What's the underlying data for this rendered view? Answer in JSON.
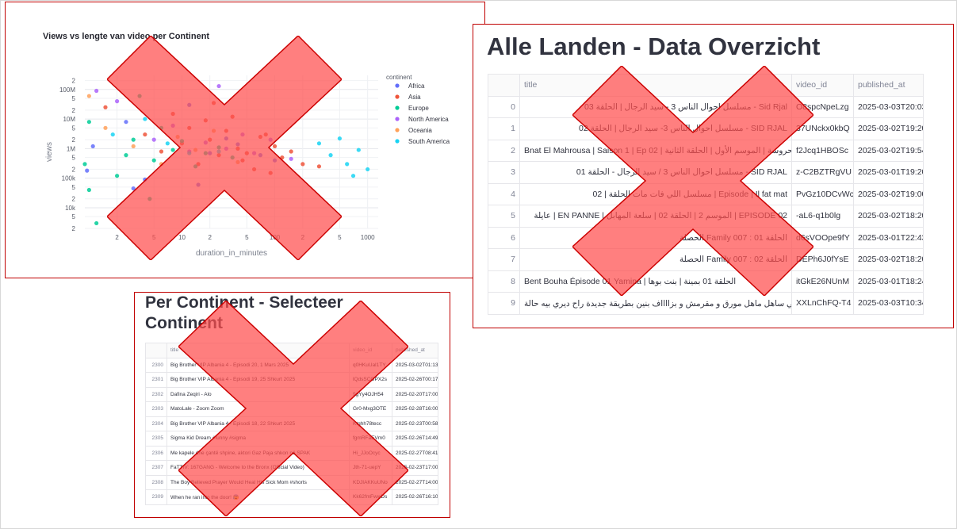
{
  "chart_data": {
    "type": "scatter",
    "title": "Views vs lengte van video per Continent",
    "xlabel": "duration_in_minutes",
    "ylabel": "views",
    "x_scale": "log",
    "y_scale": "log",
    "xlim": [
      0.9,
      1300
    ],
    "ylim": [
      2000,
      300000000
    ],
    "x_ticks": [
      {
        "v": 2,
        "l": "2"
      },
      {
        "v": 5,
        "l": "5"
      },
      {
        "v": 10,
        "l": "10"
      },
      {
        "v": 20,
        "l": "2"
      },
      {
        "v": 50,
        "l": "5"
      },
      {
        "v": 100,
        "l": "100"
      },
      {
        "v": 200,
        "l": "2"
      },
      {
        "v": 500,
        "l": "5"
      },
      {
        "v": 1000,
        "l": "1000"
      }
    ],
    "y_ticks": [
      {
        "v": 2000,
        "l": "2"
      },
      {
        "v": 5000,
        "l": "5"
      },
      {
        "v": 10000,
        "l": "10k"
      },
      {
        "v": 20000,
        "l": "2"
      },
      {
        "v": 50000,
        "l": "5"
      },
      {
        "v": 100000,
        "l": "100k"
      },
      {
        "v": 200000,
        "l": "2"
      },
      {
        "v": 500000,
        "l": "5"
      },
      {
        "v": 1000000,
        "l": "1M"
      },
      {
        "v": 2000000,
        "l": "2"
      },
      {
        "v": 5000000,
        "l": "5"
      },
      {
        "v": 10000000,
        "l": "10M"
      },
      {
        "v": 20000000,
        "l": "2"
      },
      {
        "v": 50000000,
        "l": "5"
      },
      {
        "v": 100000000,
        "l": "100M"
      },
      {
        "v": 200000000,
        "l": "2"
      }
    ],
    "legend_title": "continent",
    "legend_position": "right",
    "series": [
      {
        "name": "Africa",
        "color": "#636efa",
        "values": [
          [
            1.1,
            1200000
          ],
          [
            0.95,
            180000
          ],
          [
            3,
            45000
          ],
          [
            15,
            60000
          ],
          [
            30,
            2200000
          ],
          [
            40,
            1400000
          ],
          [
            12,
            30000000
          ],
          [
            70,
            600000
          ],
          [
            2.5,
            8000000
          ],
          [
            20,
            700000
          ],
          [
            4,
            90000
          ],
          [
            100,
            400000
          ]
        ]
      },
      {
        "name": "Asia",
        "color": "#ef553b",
        "values": [
          [
            1.5,
            25000000
          ],
          [
            4,
            3000000
          ],
          [
            6,
            800000
          ],
          [
            10,
            1500000
          ],
          [
            12,
            5000000
          ],
          [
            15,
            300000
          ],
          [
            20,
            2000000
          ],
          [
            25,
            600000
          ],
          [
            30,
            4000000
          ],
          [
            40,
            1000000
          ],
          [
            50,
            700000
          ],
          [
            60,
            200000
          ],
          [
            70,
            2500000
          ],
          [
            80,
            3000000
          ],
          [
            100,
            1200000
          ],
          [
            120,
            500000
          ],
          [
            150,
            800000
          ],
          [
            200,
            300000
          ],
          [
            300,
            250000
          ],
          [
            8,
            15000000
          ],
          [
            18,
            9000000
          ],
          [
            35,
            12000000
          ],
          [
            45,
            400000
          ],
          [
            90,
            150000
          ],
          [
            22,
            35000000
          ]
        ]
      },
      {
        "name": "Europe",
        "color": "#00cc96",
        "values": [
          [
            0.9,
            300000
          ],
          [
            1,
            40000
          ],
          [
            1,
            8000000
          ],
          [
            2,
            120000
          ],
          [
            2.5,
            600000
          ],
          [
            3,
            2000000
          ],
          [
            5,
            400000
          ],
          [
            6,
            5000000
          ],
          [
            8,
            900000
          ],
          [
            10,
            1800000
          ],
          [
            14,
            250000
          ],
          [
            18,
            700000
          ],
          [
            25,
            1100000
          ],
          [
            35,
            500000
          ],
          [
            3.5,
            60000000
          ],
          [
            1.2,
            3000
          ],
          [
            4.5,
            20000
          ]
        ]
      },
      {
        "name": "North America",
        "color": "#ab63fa",
        "values": [
          [
            1.2,
            90000000
          ],
          [
            2,
            40000000
          ],
          [
            5,
            2000000
          ],
          [
            8,
            6000000
          ],
          [
            12,
            800000
          ],
          [
            18,
            1600000
          ],
          [
            30,
            1000000
          ],
          [
            45,
            3000000
          ],
          [
            60,
            700000
          ],
          [
            90,
            2000000
          ],
          [
            150,
            450000
          ],
          [
            25,
            130000000
          ]
        ]
      },
      {
        "name": "Oceania",
        "color": "#ffa15a",
        "values": [
          [
            1,
            60000000
          ],
          [
            1.5,
            5000000
          ],
          [
            3,
            1200000
          ],
          [
            6,
            300000
          ],
          [
            9,
            2500000
          ],
          [
            14,
            900000
          ],
          [
            22,
            4000000
          ],
          [
            40,
            350000
          ]
        ]
      },
      {
        "name": "South America",
        "color": "#19d3f3",
        "values": [
          [
            1.8,
            3000000
          ],
          [
            4,
            10000000
          ],
          [
            7,
            1500000
          ],
          [
            12,
            700000
          ],
          [
            25,
            800000
          ],
          [
            300,
            1500000
          ],
          [
            400,
            600000
          ],
          [
            600,
            300000
          ],
          [
            800,
            900000
          ],
          [
            1000,
            200000
          ],
          [
            500,
            2200000
          ],
          [
            700,
            120000
          ]
        ]
      }
    ]
  },
  "all_countries": {
    "title": "Alle Landen - Data Overzicht",
    "columns": [
      "",
      "title",
      "video_id",
      "published_at"
    ],
    "rows": [
      {
        "idx": "0",
        "title": "مسلسل احوال الناس 3 - سيد الرجال | الحلقة 03 - Sid Rjal",
        "video_id": "O8spcNpeLzg",
        "published_at": "2025-03-03T20:03:"
      },
      {
        "idx": "1",
        "title": "مسلسل احوال الناس 3- سيد الرجال | الحلقة 02 - SID RJAL",
        "video_id": "37UNckx0kbQ",
        "published_at": "2025-03-02T19:20:"
      },
      {
        "idx": "2",
        "title": "Bnat El Mahrousa | Saison 1 | Ep 02 | بنات المحروسة | الموسم الأول | الحلقة الثانية",
        "video_id": "f2Jcq1HBOSc",
        "published_at": "2025-03-02T19:54:"
      },
      {
        "idx": "3",
        "title": "مسلسل احوال الناس 3 / سيد الرجال - الحلقة 01 - SID RJAL",
        "video_id": "z-C2BZTRgVU",
        "published_at": "2025-03-01T19:20:"
      },
      {
        "idx": "4",
        "title": "مسلسل اللي فات مات الحلقة | 02 | Episode | Il fat mat",
        "video_id": "PvGz10DCvWc",
        "published_at": "2025-03-02T19:00:"
      },
      {
        "idx": "5",
        "title": "عايلة | EN PANNE | الموسم 2 | الحلقة 02 | سلعة المهابل | EPISODE 02",
        "video_id": "-aL6-q1b0lg",
        "published_at": "2025-03-02T18:20:"
      },
      {
        "idx": "6",
        "title": "الحصلة Family 007 : الحلقة 01",
        "video_id": "d6sVOOpe9fY",
        "published_at": "2025-03-01T22:43:"
      },
      {
        "idx": "7",
        "title": "الحصلة Family 007 : الحلقة 02",
        "video_id": "DEPh6J0fYsE",
        "published_at": "2025-03-02T18:20:"
      },
      {
        "idx": "8",
        "title": "Bent Bouha Épisode 01 Yamina | الحلقة 01 بمينة | بنت بوها",
        "video_id": "itGkE26NUnM",
        "published_at": "2025-03-01T18:24:"
      },
      {
        "idx": "9",
        "title": "البوراك التركي ساهل ماهل مورق و مقرمش و بزااااف بنين بطريقة جديدة راح ديري بيه حالة 😍",
        "video_id": "XXLnChFQ-T4",
        "published_at": "2025-03-03T10:34:"
      }
    ]
  },
  "per_continent": {
    "title": "Per Continent - Selecteer Continent",
    "columns": [
      "",
      "title",
      "video_id",
      "published_at"
    ],
    "rows": [
      {
        "idx": "2300",
        "title": "Big Brother VIP Albania 4 - Episodi 20, 1 Mars 2025",
        "video_id": "q0HKuUal1TY",
        "published_at": "2025-03-02T01:13:"
      },
      {
        "idx": "2301",
        "title": "Big Brother VIP Albania 4 - Episodi 19, 25 Shkurt 2025",
        "video_id": "lQdsSCGPX2s",
        "published_at": "2025-02-26T00:17:"
      },
      {
        "idx": "2302",
        "title": "Dafina Zeqiri - Alo",
        "video_id": "9gYy4OJH54",
        "published_at": "2025-02-20T17:00:"
      },
      {
        "idx": "2303",
        "title": "MatoLale - Zoom Zoom",
        "video_id": "Gr0-Mxg3OTE",
        "published_at": "2025-02-28T16:00:"
      },
      {
        "idx": "2304",
        "title": "Big Brother VIP Albania 4 - Episodi 18, 22 Shkurt 2025",
        "video_id": "Ktghh78tecc",
        "published_at": "2025-02-23T00:58:"
      },
      {
        "idx": "2305",
        "title": "Sigma Kid Dream #funny #sigma",
        "video_id": "fgmRFaEVm0",
        "published_at": "2025-02-26T14:49:"
      },
      {
        "idx": "2306",
        "title": "Me kapele dhe çantë shpine, aktori Gaz Paja shkon në SPAK",
        "video_id": "Hi_JJoOcyc",
        "published_at": "2025-02-27T08:41:"
      },
      {
        "idx": "2307",
        "title": "FaTTIV: 167GANG - Welcome to the Bronx (Official Video)",
        "video_id": "Jth-71-uepY",
        "published_at": "2025-02-23T17:00:"
      },
      {
        "idx": "2308",
        "title": "The Boy Believed Prayer Would Heal His Sick Mom  #shorts",
        "video_id": "KDJIAKKuUNo",
        "published_at": "2025-02-27T14:00:"
      },
      {
        "idx": "2309",
        "title": "When he ran into the door! 😰",
        "video_id": "Kk62fmFwwDs",
        "published_at": "2025-02-26T16:10:"
      }
    ]
  },
  "overlay_colors": {
    "cross_fill": "#ff4d4d",
    "cross_stroke": "#cc0000",
    "panel_border": "#c00000"
  }
}
